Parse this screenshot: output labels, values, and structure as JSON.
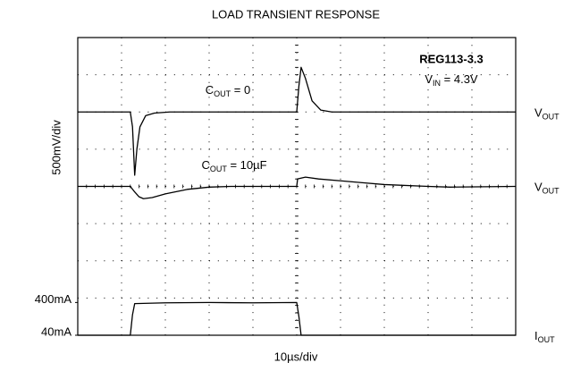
{
  "chart_data": {
    "type": "line",
    "title": "LOAD TRANSIENT RESPONSE",
    "ylabel": "500mV/div",
    "xlabel": "10µs/div",
    "device": "REG113-3.3",
    "condition": {
      "text": "V",
      "sub": "IN",
      "rest": " = 4.3V"
    },
    "annotations": [
      {
        "text": "C",
        "sub": "OUT",
        "rest": " = 0"
      },
      {
        "text": "C",
        "sub": "OUT",
        "rest": " = 10µF"
      }
    ],
    "xlim": [
      0,
      10
    ],
    "ylim": [
      0,
      8
    ],
    "xticks": [
      0,
      1,
      2,
      3,
      4,
      5,
      6,
      7,
      8,
      9,
      10
    ],
    "yticks": [
      0,
      1,
      2,
      3,
      4,
      5,
      6,
      7,
      8
    ],
    "grid": true,
    "current_ticks": [
      {
        "value": 0.88,
        "label": "400mA"
      },
      {
        "value": 0,
        "label": "40mA"
      }
    ],
    "series": [
      {
        "name": "V",
        "name_sub": "OUT",
        "color": "#000000",
        "x": [
          0,
          1.2,
          1.25,
          1.3,
          1.35,
          1.42,
          1.55,
          1.75,
          2.1,
          5.0,
          5.05,
          5.1,
          5.2,
          5.35,
          5.55,
          5.8,
          10
        ],
        "values": [
          6,
          6,
          5.6,
          4.3,
          5.0,
          5.6,
          5.9,
          5.97,
          6,
          6,
          6.7,
          7.2,
          6.9,
          6.3,
          6.05,
          6,
          6
        ]
      },
      {
        "name": "V",
        "name_sub": "OUT",
        "color": "#000000",
        "x": [
          0,
          1.2,
          1.3,
          1.4,
          1.5,
          1.7,
          2.0,
          2.5,
          3.0,
          3.5,
          5.0,
          5.02,
          5.2,
          5.5,
          6,
          6.5,
          7,
          8,
          8.5,
          10
        ],
        "values": [
          4,
          4,
          3.85,
          3.72,
          3.67,
          3.7,
          3.8,
          3.92,
          3.98,
          4,
          4,
          4.2,
          4.25,
          4.2,
          4.15,
          4.1,
          4.05,
          4.0,
          3.98,
          4
        ]
      },
      {
        "name": "I",
        "name_sub": "OUT",
        "color": "#000000",
        "x": [
          0,
          1.2,
          1.25,
          1.3,
          2,
          3,
          4,
          5.0,
          5.05,
          5.1,
          10
        ],
        "values": [
          0,
          0,
          0.55,
          0.85,
          0.87,
          0.88,
          0.87,
          0.88,
          0.5,
          0,
          0
        ]
      }
    ]
  }
}
